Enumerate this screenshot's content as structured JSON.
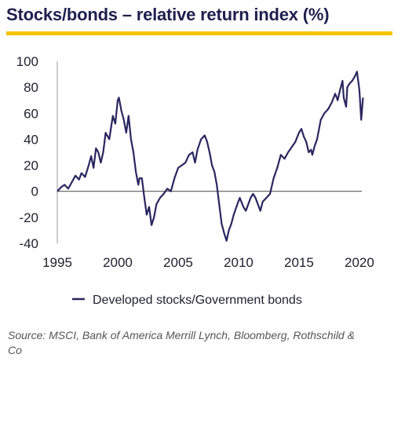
{
  "header": {
    "title": "Stocks/bonds – relative return index (%)",
    "rule_color": "#f5c400"
  },
  "footer": {
    "source": "Source: MSCI, Bank of America Merrill Lynch, Bloomberg, Rothschild & Co"
  },
  "chart_data": {
    "type": "line",
    "title": "Stocks/bonds – relative return index (%)",
    "xlabel": "",
    "ylabel": "",
    "xlim": [
      1995,
      2020.2
    ],
    "ylim": [
      -40,
      100
    ],
    "xticks": [
      "1995",
      "2000",
      "2005",
      "2010",
      "2015",
      "2020"
    ],
    "yticks": [
      "100",
      "80",
      "60",
      "40",
      "20",
      "0",
      "-20",
      "-40"
    ],
    "grid": false,
    "zero_line": true,
    "legend": "bottom",
    "line_color": "#2a2660",
    "series": [
      {
        "name": "Developed stocks/Government bonds",
        "x": [
          1995.0,
          1995.3,
          1995.6,
          1995.9,
          1996.2,
          1996.5,
          1996.8,
          1997.0,
          1997.3,
          1997.6,
          1997.8,
          1998.0,
          1998.2,
          1998.4,
          1998.6,
          1998.8,
          1999.0,
          1999.3,
          1999.6,
          1999.8,
          2000.0,
          2000.1,
          2000.3,
          2000.5,
          2000.7,
          2000.9,
          2001.1,
          2001.3,
          2001.5,
          2001.7,
          2001.8,
          2002.0,
          2002.2,
          2002.4,
          2002.6,
          2002.8,
          2003.0,
          2003.2,
          2003.5,
          2003.8,
          2004.1,
          2004.4,
          2004.7,
          2005.0,
          2005.3,
          2005.6,
          2005.9,
          2006.2,
          2006.4,
          2006.6,
          2006.9,
          2007.2,
          2007.4,
          2007.6,
          2007.8,
          2008.0,
          2008.2,
          2008.4,
          2008.6,
          2008.8,
          2009.0,
          2009.2,
          2009.4,
          2009.6,
          2009.9,
          2010.1,
          2010.4,
          2010.6,
          2010.8,
          2011.0,
          2011.2,
          2011.4,
          2011.6,
          2011.8,
          2012.0,
          2012.3,
          2012.6,
          2012.9,
          2013.2,
          2013.5,
          2013.8,
          2014.1,
          2014.4,
          2014.7,
          2015.0,
          2015.2,
          2015.4,
          2015.6,
          2015.8,
          2016.0,
          2016.1,
          2016.3,
          2016.5,
          2016.8,
          2017.1,
          2017.4,
          2017.7,
          2018.0,
          2018.2,
          2018.4,
          2018.6,
          2018.7,
          2018.9,
          2019.0,
          2019.2,
          2019.4,
          2019.6,
          2019.8,
          2020.0,
          2020.15,
          2020.3
        ],
        "y": [
          0,
          3,
          5,
          2,
          7,
          12,
          9,
          14,
          11,
          20,
          27,
          18,
          33,
          30,
          22,
          30,
          45,
          40,
          58,
          52,
          70,
          72,
          62,
          55,
          45,
          58,
          40,
          30,
          15,
          5,
          10,
          10,
          -5,
          -18,
          -12,
          -26,
          -20,
          -10,
          -5,
          -2,
          2,
          0,
          10,
          18,
          20,
          22,
          28,
          30,
          22,
          32,
          40,
          43,
          38,
          30,
          20,
          15,
          5,
          -10,
          -25,
          -32,
          -38,
          -30,
          -25,
          -18,
          -10,
          -5,
          -12,
          -15,
          -10,
          -5,
          -2,
          -5,
          -10,
          -15,
          -8,
          -5,
          -2,
          10,
          18,
          28,
          25,
          30,
          34,
          38,
          45,
          48,
          42,
          38,
          30,
          32,
          28,
          35,
          40,
          55,
          60,
          63,
          68,
          75,
          70,
          78,
          85,
          72,
          65,
          80,
          83,
          85,
          88,
          92,
          78,
          55,
          72
        ]
      }
    ]
  }
}
